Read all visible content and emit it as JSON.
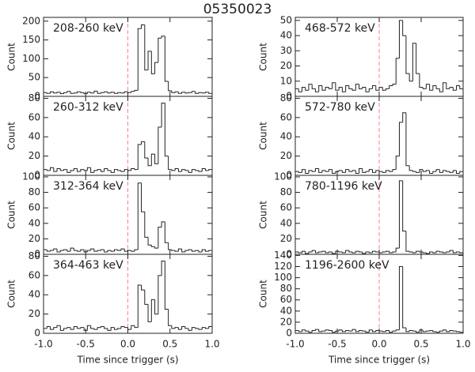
{
  "title": "05350023",
  "chart_data": [
    {
      "type": "histogram",
      "title": "208-260 keV",
      "ylabel": "Count",
      "color": "#222222",
      "vline": 0,
      "vline_color": "#ff8080",
      "bins": [
        -1,
        -0.96,
        -0.92,
        -0.88,
        -0.84,
        -0.8,
        -0.76,
        -0.72,
        -0.68,
        -0.64,
        -0.6,
        -0.56,
        -0.52,
        -0.48,
        -0.44,
        -0.4,
        -0.36,
        -0.32,
        -0.28,
        -0.24,
        -0.2,
        -0.16,
        -0.12,
        -0.08,
        -0.04,
        0,
        0.04,
        0.08,
        0.12,
        0.16,
        0.2,
        0.24,
        0.28,
        0.32,
        0.36,
        0.4,
        0.44,
        0.48,
        0.52,
        0.56,
        0.6,
        0.64,
        0.68,
        0.72,
        0.76,
        0.8,
        0.84,
        0.88,
        0.92,
        0.96,
        1
      ],
      "values": [
        10,
        8,
        12,
        9,
        11,
        7,
        10,
        13,
        8,
        9,
        12,
        10,
        7,
        11,
        9,
        14,
        8,
        10,
        12,
        9,
        11,
        8,
        10,
        9,
        12,
        10,
        13,
        16,
        180,
        190,
        70,
        120,
        60,
        90,
        155,
        160,
        40,
        15,
        10,
        12,
        8,
        11,
        9,
        10,
        13,
        8,
        10,
        9,
        11,
        8
      ],
      "xlim": [
        -1,
        1
      ],
      "xticks": [
        -1,
        -0.5,
        0,
        0.5,
        1
      ],
      "ylim": [
        0,
        210
      ],
      "yticks": [
        0,
        50,
        100,
        150,
        200
      ]
    },
    {
      "type": "histogram",
      "title": "260-312 keV",
      "ylabel": "Count",
      "color": "#222222",
      "vline": 0,
      "vline_color": "#ff8080",
      "bins": [
        -1,
        -0.96,
        -0.92,
        -0.88,
        -0.84,
        -0.8,
        -0.76,
        -0.72,
        -0.68,
        -0.64,
        -0.6,
        -0.56,
        -0.52,
        -0.48,
        -0.44,
        -0.4,
        -0.36,
        -0.32,
        -0.28,
        -0.24,
        -0.2,
        -0.16,
        -0.12,
        -0.08,
        -0.04,
        0,
        0.04,
        0.08,
        0.12,
        0.16,
        0.2,
        0.24,
        0.28,
        0.32,
        0.36,
        0.4,
        0.44,
        0.48,
        0.52,
        0.56,
        0.6,
        0.64,
        0.68,
        0.72,
        0.76,
        0.8,
        0.84,
        0.88,
        0.92,
        0.96,
        1
      ],
      "values": [
        6,
        5,
        8,
        4,
        7,
        5,
        6,
        3,
        5,
        7,
        4,
        6,
        5,
        8,
        3,
        5,
        6,
        4,
        7,
        5,
        3,
        6,
        5,
        4,
        6,
        5,
        7,
        6,
        32,
        35,
        18,
        10,
        22,
        12,
        50,
        75,
        20,
        6,
        5,
        7,
        4,
        6,
        5,
        3,
        6,
        5,
        4,
        7,
        5,
        6
      ],
      "xlim": [
        -1,
        1
      ],
      "xticks": [
        -1,
        -0.5,
        0,
        0.5,
        1
      ],
      "ylim": [
        0,
        82
      ],
      "yticks": [
        0,
        20,
        40,
        60,
        80
      ]
    },
    {
      "type": "histogram",
      "title": "312-364 keV",
      "ylabel": "Count",
      "color": "#222222",
      "vline": 0,
      "vline_color": "#ff8080",
      "bins": [
        -1,
        -0.96,
        -0.92,
        -0.88,
        -0.84,
        -0.8,
        -0.76,
        -0.72,
        -0.68,
        -0.64,
        -0.6,
        -0.56,
        -0.52,
        -0.48,
        -0.44,
        -0.4,
        -0.36,
        -0.32,
        -0.28,
        -0.24,
        -0.2,
        -0.16,
        -0.12,
        -0.08,
        -0.04,
        0,
        0.04,
        0.08,
        0.12,
        0.16,
        0.2,
        0.24,
        0.28,
        0.32,
        0.36,
        0.4,
        0.44,
        0.48,
        0.52,
        0.56,
        0.6,
        0.64,
        0.68,
        0.72,
        0.76,
        0.8,
        0.84,
        0.88,
        0.92,
        0.96,
        1
      ],
      "values": [
        6,
        4,
        5,
        7,
        3,
        5,
        6,
        4,
        8,
        5,
        4,
        6,
        3,
        5,
        7,
        4,
        5,
        6,
        3,
        5,
        4,
        6,
        5,
        7,
        4,
        5,
        4,
        6,
        92,
        55,
        22,
        12,
        10,
        8,
        35,
        42,
        15,
        6,
        5,
        4,
        7,
        3,
        5,
        6,
        4,
        5,
        3,
        6,
        4,
        5
      ],
      "xlim": [
        -1,
        1
      ],
      "xticks": [
        -1,
        -0.5,
        0,
        0.5,
        1
      ],
      "ylim": [
        0,
        102
      ],
      "yticks": [
        0,
        20,
        40,
        60,
        80,
        100
      ]
    },
    {
      "type": "histogram",
      "title": "364-463 keV",
      "ylabel": "Count",
      "xlabel": "Time since trigger (s)",
      "color": "#222222",
      "vline": 0,
      "vline_color": "#ff8080",
      "bins": [
        -1,
        -0.96,
        -0.92,
        -0.88,
        -0.84,
        -0.8,
        -0.76,
        -0.72,
        -0.68,
        -0.64,
        -0.6,
        -0.56,
        -0.52,
        -0.48,
        -0.44,
        -0.4,
        -0.36,
        -0.32,
        -0.28,
        -0.24,
        -0.2,
        -0.16,
        -0.12,
        -0.08,
        -0.04,
        0,
        0.04,
        0.08,
        0.12,
        0.16,
        0.2,
        0.24,
        0.28,
        0.32,
        0.36,
        0.4,
        0.44,
        0.48,
        0.52,
        0.56,
        0.6,
        0.64,
        0.68,
        0.72,
        0.76,
        0.8,
        0.84,
        0.88,
        0.92,
        0.96,
        1
      ],
      "values": [
        5,
        7,
        4,
        6,
        8,
        3,
        5,
        6,
        4,
        7,
        5,
        6,
        3,
        8,
        5,
        4,
        6,
        7,
        5,
        3,
        6,
        4,
        5,
        7,
        6,
        4,
        8,
        6,
        50,
        45,
        30,
        12,
        35,
        20,
        60,
        75,
        25,
        8,
        5,
        6,
        4,
        7,
        5,
        3,
        6,
        5,
        4,
        6,
        5,
        7
      ],
      "xlim": [
        -1,
        1
      ],
      "xticks": [
        {
          "value": -1,
          "label": "-1.0"
        },
        -0.5,
        {
          "value": 0,
          "label": "0.0"
        },
        0.5,
        {
          "value": 1,
          "label": "1.0"
        }
      ],
      "ylim": [
        0,
        82
      ],
      "yticks": [
        0,
        20,
        40,
        60,
        80
      ]
    },
    {
      "type": "histogram",
      "title": "468-572 keV",
      "ylabel": "Count",
      "color": "#222222",
      "vline": 0,
      "vline_color": "#ff8080",
      "bins": [
        -1,
        -0.96,
        -0.92,
        -0.88,
        -0.84,
        -0.8,
        -0.76,
        -0.72,
        -0.68,
        -0.64,
        -0.6,
        -0.56,
        -0.52,
        -0.48,
        -0.44,
        -0.4,
        -0.36,
        -0.32,
        -0.28,
        -0.24,
        -0.2,
        -0.16,
        -0.12,
        -0.08,
        -0.04,
        0,
        0.04,
        0.08,
        0.12,
        0.16,
        0.2,
        0.24,
        0.28,
        0.32,
        0.36,
        0.4,
        0.44,
        0.48,
        0.52,
        0.56,
        0.6,
        0.64,
        0.68,
        0.72,
        0.76,
        0.8,
        0.84,
        0.88,
        0.92,
        0.96,
        1
      ],
      "values": [
        5,
        3,
        6,
        4,
        8,
        5,
        3,
        7,
        4,
        6,
        5,
        9,
        4,
        6,
        3,
        7,
        5,
        4,
        8,
        5,
        6,
        3,
        5,
        7,
        4,
        6,
        4,
        5,
        7,
        8,
        25,
        50,
        40,
        15,
        10,
        35,
        15,
        6,
        5,
        8,
        4,
        7,
        5,
        3,
        9,
        5,
        6,
        4,
        7,
        5
      ],
      "xlim": [
        -1,
        1
      ],
      "xticks": [
        -1,
        -0.5,
        0,
        0.5,
        1
      ],
      "ylim": [
        0,
        52
      ],
      "yticks": [
        0,
        10,
        20,
        30,
        40,
        50
      ]
    },
    {
      "type": "histogram",
      "title": "572-780 keV",
      "ylabel": "Count",
      "color": "#222222",
      "vline": 0,
      "vline_color": "#ff8080",
      "bins": [
        -1,
        -0.96,
        -0.92,
        -0.88,
        -0.84,
        -0.8,
        -0.76,
        -0.72,
        -0.68,
        -0.64,
        -0.6,
        -0.56,
        -0.52,
        -0.48,
        -0.44,
        -0.4,
        -0.36,
        -0.32,
        -0.28,
        -0.24,
        -0.2,
        -0.16,
        -0.12,
        -0.08,
        -0.04,
        0,
        0.04,
        0.08,
        0.12,
        0.16,
        0.2,
        0.24,
        0.28,
        0.32,
        0.36,
        0.4,
        0.44,
        0.48,
        0.52,
        0.56,
        0.6,
        0.64,
        0.68,
        0.72,
        0.76,
        0.8,
        0.84,
        0.88,
        0.92,
        0.96,
        1
      ],
      "values": [
        4,
        3,
        6,
        2,
        5,
        4,
        7,
        3,
        5,
        4,
        6,
        2,
        4,
        5,
        3,
        6,
        4,
        5,
        2,
        7,
        3,
        4,
        6,
        3,
        5,
        4,
        3,
        5,
        4,
        6,
        20,
        55,
        65,
        10,
        5,
        4,
        3,
        6,
        4,
        5,
        2,
        4,
        6,
        3,
        5,
        4,
        3,
        5,
        2,
        4
      ],
      "xlim": [
        -1,
        1
      ],
      "xticks": [
        -1,
        -0.5,
        0,
        0.5,
        1
      ],
      "ylim": [
        0,
        82
      ],
      "yticks": [
        0,
        20,
        40,
        60,
        80
      ]
    },
    {
      "type": "histogram",
      "title": "780-1196 keV",
      "ylabel": "Count",
      "color": "#222222",
      "vline": 0,
      "vline_color": "#ff8080",
      "bins": [
        -1,
        -0.96,
        -0.92,
        -0.88,
        -0.84,
        -0.8,
        -0.76,
        -0.72,
        -0.68,
        -0.64,
        -0.6,
        -0.56,
        -0.52,
        -0.48,
        -0.44,
        -0.4,
        -0.36,
        -0.32,
        -0.28,
        -0.24,
        -0.2,
        -0.16,
        -0.12,
        -0.08,
        -0.04,
        0,
        0.04,
        0.08,
        0.12,
        0.16,
        0.2,
        0.24,
        0.28,
        0.32,
        0.36,
        0.4,
        0.44,
        0.48,
        0.52,
        0.56,
        0.6,
        0.64,
        0.68,
        0.72,
        0.76,
        0.8,
        0.84,
        0.88,
        0.92,
        0.96,
        1
      ],
      "values": [
        3,
        2,
        4,
        1,
        3,
        5,
        2,
        3,
        4,
        2,
        3,
        1,
        4,
        3,
        2,
        5,
        3,
        2,
        4,
        3,
        1,
        3,
        2,
        4,
        3,
        2,
        3,
        4,
        2,
        3,
        8,
        95,
        30,
        4,
        3,
        2,
        4,
        3,
        2,
        1,
        3,
        2,
        4,
        3,
        2,
        3,
        5,
        2,
        3,
        2
      ],
      "xlim": [
        -1,
        1
      ],
      "xticks": [
        -1,
        -0.5,
        0,
        0.5,
        1
      ],
      "ylim": [
        0,
        102
      ],
      "yticks": [
        0,
        20,
        40,
        60,
        80,
        100
      ]
    },
    {
      "type": "histogram",
      "title": "1196-2600 keV",
      "ylabel": "Count",
      "xlabel": "Time since trigger (s)",
      "color": "#222222",
      "vline": 0,
      "vline_color": "#ff8080",
      "bins": [
        -1,
        -0.96,
        -0.92,
        -0.88,
        -0.84,
        -0.8,
        -0.76,
        -0.72,
        -0.68,
        -0.64,
        -0.6,
        -0.56,
        -0.52,
        -0.48,
        -0.44,
        -0.4,
        -0.36,
        -0.32,
        -0.28,
        -0.24,
        -0.2,
        -0.16,
        -0.12,
        -0.08,
        -0.04,
        0,
        0.04,
        0.08,
        0.12,
        0.16,
        0.2,
        0.24,
        0.28,
        0.32,
        0.36,
        0.4,
        0.44,
        0.48,
        0.52,
        0.56,
        0.6,
        0.64,
        0.68,
        0.72,
        0.76,
        0.8,
        0.84,
        0.88,
        0.92,
        0.96,
        1
      ],
      "values": [
        5,
        3,
        6,
        4,
        2,
        5,
        7,
        3,
        4,
        6,
        5,
        2,
        4,
        6,
        3,
        5,
        4,
        7,
        3,
        5,
        4,
        2,
        6,
        3,
        5,
        4,
        3,
        5,
        2,
        4,
        6,
        120,
        10,
        3,
        5,
        4,
        2,
        6,
        3,
        4,
        5,
        3,
        2,
        4,
        6,
        3,
        5,
        4,
        3,
        2
      ],
      "xlim": [
        -1,
        1
      ],
      "xticks": [
        {
          "value": -1,
          "label": "-1.0"
        },
        -0.5,
        {
          "value": 0,
          "label": "0.0"
        },
        0.5,
        {
          "value": 1,
          "label": "1.0"
        }
      ],
      "ylim": [
        0,
        142
      ],
      "yticks": [
        0,
        20,
        40,
        60,
        80,
        100,
        120,
        140
      ]
    }
  ]
}
